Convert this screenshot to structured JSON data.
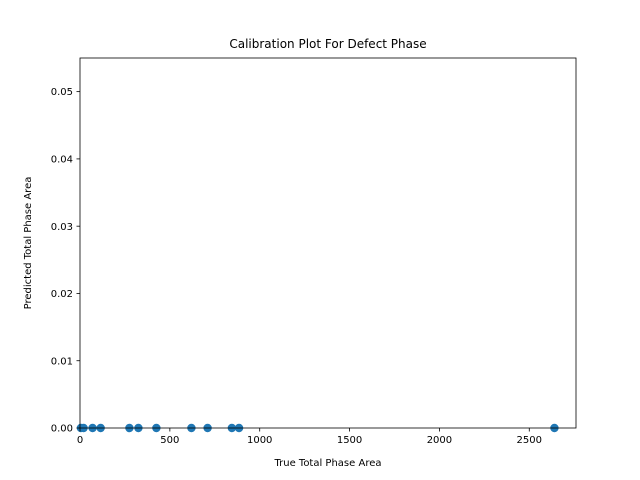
{
  "chart_data": {
    "type": "scatter",
    "title": "Calibration Plot For Defect Phase",
    "xlabel": "True Total Phase Area",
    "ylabel": "Predicted Total Phase Area",
    "xlim": [
      0,
      2760
    ],
    "ylim": [
      0,
      0.055
    ],
    "xticks": [
      0,
      500,
      1000,
      1500,
      2000,
      2500
    ],
    "xtick_labels": [
      "0",
      "500",
      "1000",
      "1500",
      "2000",
      "2500"
    ],
    "yticks": [
      0,
      0.01,
      0.02,
      0.03,
      0.04,
      0.05
    ],
    "ytick_labels": [
      "0.00",
      "0.01",
      "0.02",
      "0.03",
      "0.04",
      "0.05"
    ],
    "grid": false,
    "marker_color": "#1f77b4",
    "series": [
      {
        "x": [
          5,
          20,
          70,
          115,
          275,
          325,
          425,
          620,
          710,
          845,
          885,
          2640
        ],
        "y": [
          0,
          0,
          0,
          0,
          0,
          0,
          0,
          0,
          0,
          0,
          0,
          0
        ]
      }
    ]
  }
}
